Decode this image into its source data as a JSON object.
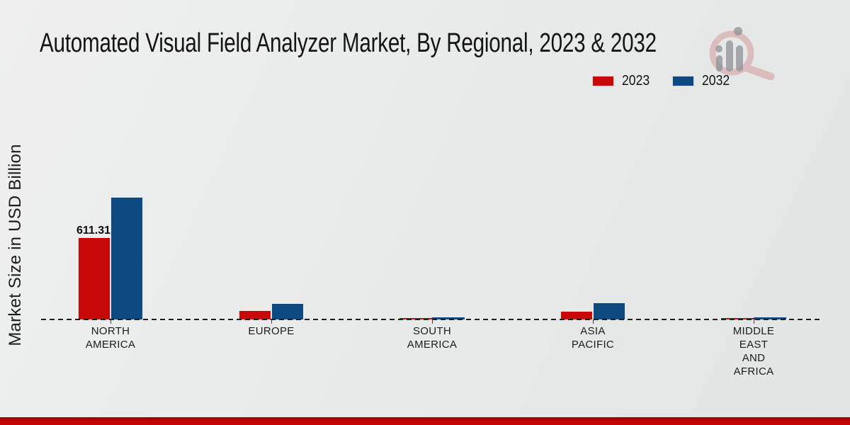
{
  "title": "Automated Visual Field Analyzer Market, By Regional, 2023 & 2032",
  "ylabel": "Market Size in USD Billion",
  "legend": [
    {
      "label": "2023",
      "color": "#c80707"
    },
    {
      "label": "2032",
      "color": "#0e4a82"
    }
  ],
  "annotation": {
    "value_label": "611.31"
  },
  "colors": {
    "series_2023": "#c80707",
    "series_2032": "#0e4a82",
    "bottom_strip": "#c50404",
    "background": "#e9ebeb",
    "baseline_dash": "#1e1e1e"
  },
  "watermark_icon": "magnifier-bar-chart-logo",
  "chart_data": {
    "type": "bar",
    "categories": [
      "NORTH AMERICA",
      "EUROPE",
      "SOUTH AMERICA",
      "ASIA PACIFIC",
      "MIDDLE EAST AND AFRICA"
    ],
    "series": [
      {
        "name": "2023",
        "color": "#c80707",
        "values": [
          611.31,
          68.5,
          10.2,
          63.4,
          8.9
        ]
      },
      {
        "name": "2032",
        "color": "#0e4a82",
        "values": [
          911.6,
          121.3,
          15.8,
          126.5,
          14.2
        ]
      }
    ],
    "labeled_points": [
      {
        "category": "NORTH AMERICA",
        "series": "2023",
        "label": "611.31"
      }
    ],
    "title": "Automated Visual Field Analyzer Market, By Regional, 2023 & 2032",
    "xlabel": "",
    "ylabel": "Market Size in USD Billion",
    "ylim": [
      0,
      1000
    ],
    "grid": false,
    "baseline_style": "dashed",
    "legend_position": "top-right",
    "value_axis_ticks_visible": false
  }
}
